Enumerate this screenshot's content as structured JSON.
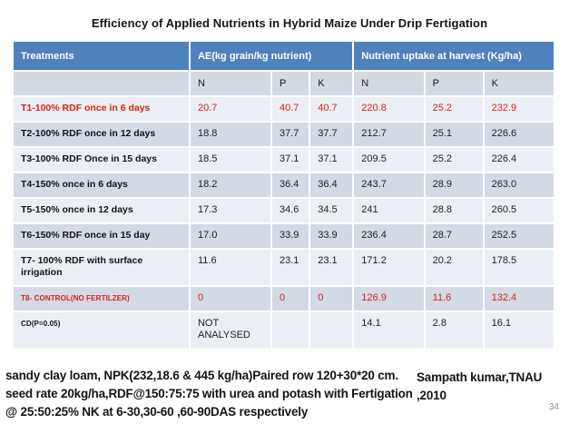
{
  "slide": {
    "title": "Efficiency of Applied Nutrients in Hybrid Maize Under Drip Fertigation",
    "page_number": "34"
  },
  "table": {
    "header": {
      "treatments": "Treatments",
      "group1": "AE(kg grain/kg nutrient)",
      "group2": "Nutrient uptake at harvest (Kg/ha)"
    },
    "subheader": [
      "N",
      "P",
      "K",
      "N",
      "P",
      "K"
    ],
    "rows": [
      {
        "treatment": "T1-100% RDF  once in 6 days",
        "values": [
          "20.7",
          "40.7",
          "40.7",
          "220.8",
          "25.2",
          "232.9"
        ],
        "red": true,
        "small_label": false
      },
      {
        "treatment": "T2-100% RDF once in 12 days",
        "values": [
          "18.8",
          "37.7",
          "37.7",
          "212.7",
          "25.1",
          "226.6"
        ],
        "red": false,
        "small_label": false
      },
      {
        "treatment": "T3-100% RDF Once in 15 days",
        "values": [
          "18.5",
          "37.1",
          "37.1",
          "209.5",
          "25.2",
          "226.4"
        ],
        "red": false,
        "small_label": false
      },
      {
        "treatment": "T4-150% once in 6 days",
        "values": [
          "18.2",
          "36.4",
          "36.4",
          "243.7",
          "28.9",
          "263.0"
        ],
        "red": false,
        "small_label": false
      },
      {
        "treatment": "T5-150% once in 12 days",
        "values": [
          "17.3",
          "34.6",
          "34.5",
          "241",
          "28.8",
          "260.5"
        ],
        "red": false,
        "small_label": false
      },
      {
        "treatment": "T6-150% RDF once in 15 day",
        "values": [
          "17.0",
          "33.9",
          "33.9",
          "236.4",
          "28.7",
          "252.5"
        ],
        "red": false,
        "small_label": false
      },
      {
        "treatment": "T7- 100% RDF with surface irrigation",
        "values": [
          "11.6",
          "23.1",
          "23.1",
          "171.2",
          "20.2",
          "178.5"
        ],
        "red": false,
        "small_label": false
      },
      {
        "treatment": "T8- CONTROL(NO FERTILZER)",
        "values": [
          "0",
          "0",
          "0",
          "126.9",
          "11.6",
          "132.4"
        ],
        "red": true,
        "small_label": true
      },
      {
        "treatment": "CD(P=0.05)",
        "values": [
          "NOT ANALYSED",
          "",
          "",
          "14.1",
          "2.8",
          "16.1"
        ],
        "red": false,
        "small_label": true
      }
    ]
  },
  "footer": {
    "note": "sandy clay loam, NPK(232,18.6 & 445 kg/ha)Paired row 120+30*20 cm. seed rate 20kg/ha,RDF@150:75:75 with urea and potash with Fertigation @ 25:50:25% NK at 6-30,30-60 ,60-90DAS respectively",
    "attribution_line1": "Sampath kumar,TNAU",
    "attribution_line2": ",2010"
  },
  "colors": {
    "header_blue": "#4f81bd",
    "band_dark": "#d3d9e5",
    "band_light": "#ebeef4",
    "red_text": "#d9231b",
    "page_gray": "#8f8f8f"
  }
}
